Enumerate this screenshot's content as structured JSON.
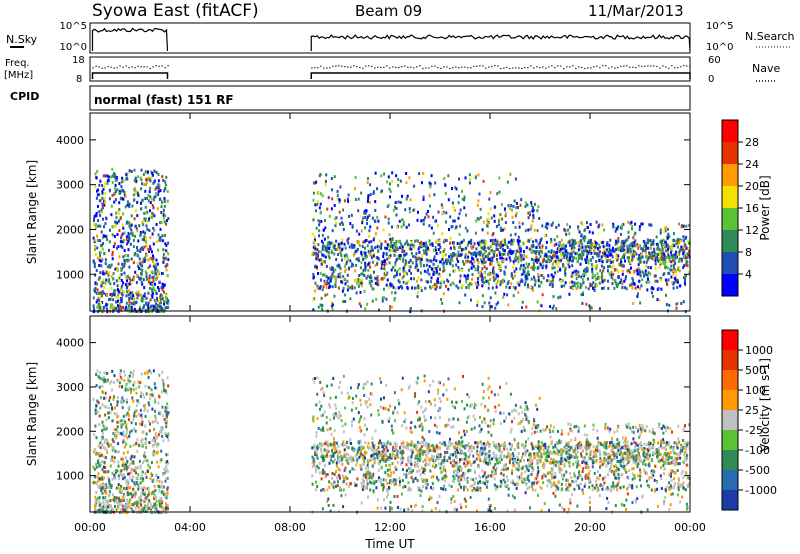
{
  "header": {
    "station": "Syowa East (fitACF)",
    "beam": "Beam 09",
    "date": "11/Mar/2013"
  },
  "noise_panel": {
    "left_label": "N.Sky",
    "right_label": "N.Search",
    "left_ticks": [
      "10^5",
      "10^0"
    ],
    "right_ticks": [
      "10^5",
      "10^0"
    ]
  },
  "freq_panel": {
    "left_label_line1": "Freq.",
    "left_label_line2": "[MHz]",
    "right_label": "Nave",
    "left_ticks": [
      "18",
      "8"
    ],
    "right_ticks": [
      "60",
      "0"
    ]
  },
  "cpid": {
    "label": "CPID",
    "value": "normal (fast) 151 RF"
  },
  "chart_data": [
    {
      "type": "heatmap",
      "name": "Power",
      "ylabel": "Slant Range [km]",
      "ylim": [
        180,
        4600
      ],
      "y_ticks": [
        "1000",
        "2000",
        "3000",
        "4000"
      ],
      "x_range_hours": [
        0,
        24
      ],
      "colorbar_title": "Power [dB]",
      "colorbar_ticks": [
        "4",
        "8",
        "12",
        "16",
        "20",
        "24",
        "28"
      ],
      "colorbar_colors": [
        "#0000ff",
        "#1f4fb4",
        "#2e8b57",
        "#5bc236",
        "#f5e100",
        "#ff9a00",
        "#e63200",
        "#ff0000"
      ],
      "coverage_hours": [
        [
          0.1,
          3.1
        ],
        [
          8.85,
          24.0
        ]
      ]
    },
    {
      "type": "heatmap",
      "name": "Velocity",
      "xlabel": "Time UT",
      "ylabel": "Slant Range [km]",
      "ylim": [
        180,
        4600
      ],
      "y_ticks": [
        "1000",
        "2000",
        "3000",
        "4000"
      ],
      "x_ticks": [
        "00:00",
        "04:00",
        "08:00",
        "12:00",
        "16:00",
        "20:00",
        "00:00"
      ],
      "colorbar_title": "Velocity [m s-1]",
      "colorbar_ticks": [
        "1000",
        "500",
        "100",
        "25",
        "-25",
        "-100",
        "-500",
        "-1000"
      ],
      "colorbar_colors": [
        "#1e3ca8",
        "#2a6ab0",
        "#2e8b57",
        "#5bc236",
        "#c0c0c0",
        "#ff9a00",
        "#ff6a00",
        "#e63200",
        "#ff0000"
      ],
      "coverage_hours": [
        [
          0.1,
          3.1
        ],
        [
          8.85,
          24.0
        ]
      ]
    }
  ]
}
